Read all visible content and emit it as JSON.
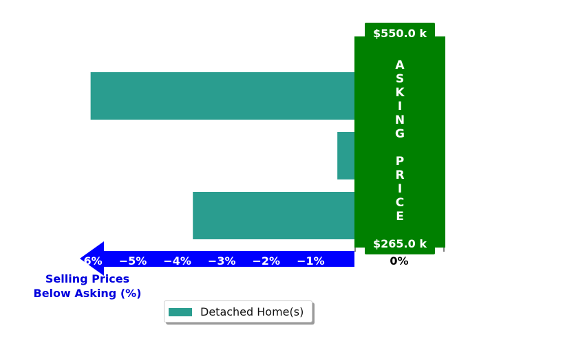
{
  "chart_data": {
    "type": "bar",
    "orientation": "horizontal",
    "xlim": [
      -6.5,
      0
    ],
    "series": [
      {
        "name": "Detached Home(s)",
        "values": [
          -5.95,
          -0.4,
          -3.65
        ]
      }
    ],
    "x_ticks": [
      {
        "value": -6,
        "label": "−6%"
      },
      {
        "value": -5,
        "label": "−5%"
      },
      {
        "value": -4,
        "label": "−4%"
      },
      {
        "value": -3,
        "label": "−3%"
      },
      {
        "value": -2,
        "label": "−2%"
      },
      {
        "value": -1,
        "label": "−1%"
      },
      {
        "value": 0,
        "label": "0%"
      }
    ],
    "asking_price_band": {
      "letters": [
        "A",
        "S",
        "K",
        "I",
        "N",
        "G",
        "",
        "P",
        "R",
        "I",
        "C",
        "E"
      ],
      "top_label": "$550.0 k",
      "bottom_label": "$265.0 k"
    },
    "arrow_label_line1": "Selling Prices",
    "arrow_label_line2": "Below Asking (%)",
    "legend": {
      "placement": "bottom-center"
    },
    "grid": false
  },
  "colors": {
    "bar": "#2a9d8f",
    "band": "#008000",
    "arrow": "#0000ff",
    "arrow_text": "#0000dd",
    "tick_text": "#ffffff",
    "zero_tick_text": "#000000"
  }
}
